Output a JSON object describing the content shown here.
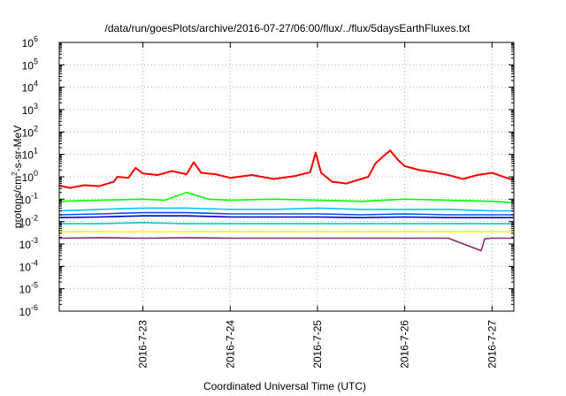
{
  "chart_data": {
    "type": "line",
    "title": "/data/run/goesPlots/archive/2016-07-27/06:00/flux/../flux/5daysEarthFluxes.txt",
    "xlabel": "Coordinated Universal Time (UTC)",
    "ylabel": {
      "prefix": "protons/cm",
      "sup": "2",
      "suffix": "-s-sr-MeV"
    },
    "y_scale": "log",
    "ylim_exponent": [
      -6,
      6
    ],
    "y_tick_exponents": [
      -6,
      -5,
      -4,
      -3,
      -2,
      -1,
      0,
      1,
      2,
      3,
      4,
      5,
      6
    ],
    "y_tick_base": "10",
    "xlim": [
      "2016-07-22 01:00",
      "2016-07-27 06:00"
    ],
    "x_ticks": [
      "2016-7-23",
      "2016-7-24",
      "2016-7-25",
      "2016-7-26",
      "2016-7-27"
    ],
    "grid": true,
    "legend": "none",
    "series": [
      {
        "color": "#ff0000",
        "points": [
          [
            "2016-07-22 01:00",
            0.4
          ],
          [
            "2016-07-22 04:00",
            0.32
          ],
          [
            "2016-07-22 08:00",
            0.42
          ],
          [
            "2016-07-22 12:00",
            0.38
          ],
          [
            "2016-07-22 16:00",
            0.6
          ],
          [
            "2016-07-22 20:00",
            0.9
          ],
          [
            "2016-07-23 00:00",
            1.4
          ],
          [
            "2016-07-22 17:00",
            1.0
          ],
          [
            "2016-07-22 22:00",
            2.5
          ],
          [
            "2016-07-23 04:00",
            1.2
          ],
          [
            "2016-07-23 08:00",
            1.8
          ],
          [
            "2016-07-23 12:00",
            1.3
          ],
          [
            "2016-07-23 14:00",
            4.5
          ],
          [
            "2016-07-23 16:00",
            1.5
          ],
          [
            "2016-07-23 20:00",
            1.3
          ],
          [
            "2016-07-24 00:00",
            0.9
          ],
          [
            "2016-07-24 06:00",
            1.2
          ],
          [
            "2016-07-24 12:00",
            0.8
          ],
          [
            "2016-07-24 18:00",
            1.1
          ],
          [
            "2016-07-24 22:00",
            1.6
          ],
          [
            "2016-07-24 23:30",
            12.0
          ],
          [
            "2016-07-25 01:00",
            1.5
          ],
          [
            "2016-07-25 04:00",
            0.6
          ],
          [
            "2016-07-25 08:00",
            0.5
          ],
          [
            "2016-07-25 12:00",
            0.8
          ],
          [
            "2016-07-25 14:00",
            1.0
          ],
          [
            "2016-07-25 16:00",
            4.0
          ],
          [
            "2016-07-25 18:00",
            8.0
          ],
          [
            "2016-07-25 20:00",
            15.0
          ],
          [
            "2016-07-25 22:00",
            6.0
          ],
          [
            "2016-07-26 00:00",
            3.0
          ],
          [
            "2016-07-26 04:00",
            2.0
          ],
          [
            "2016-07-26 08:00",
            1.6
          ],
          [
            "2016-07-26 12:00",
            1.2
          ],
          [
            "2016-07-26 16:00",
            0.8
          ],
          [
            "2016-07-26 20:00",
            1.2
          ],
          [
            "2016-07-27 00:00",
            1.5
          ],
          [
            "2016-07-27 04:00",
            0.9
          ],
          [
            "2016-07-27 06:00",
            0.7
          ]
        ]
      },
      {
        "color": "#00ff00",
        "points": [
          [
            "2016-07-22 01:00",
            0.08
          ],
          [
            "2016-07-22 12:00",
            0.09
          ],
          [
            "2016-07-23 00:00",
            0.1
          ],
          [
            "2016-07-23 06:00",
            0.09
          ],
          [
            "2016-07-23 12:00",
            0.2
          ],
          [
            "2016-07-23 18:00",
            0.1
          ],
          [
            "2016-07-24 00:00",
            0.09
          ],
          [
            "2016-07-24 12:00",
            0.1
          ],
          [
            "2016-07-25 00:00",
            0.09
          ],
          [
            "2016-07-25 12:00",
            0.08
          ],
          [
            "2016-07-26 00:00",
            0.1
          ],
          [
            "2016-07-26 12:00",
            0.09
          ],
          [
            "2016-07-27 00:00",
            0.08
          ],
          [
            "2016-07-27 06:00",
            0.07
          ]
        ]
      },
      {
        "color": "#00c8ff",
        "points": [
          [
            "2016-07-22 01:00",
            0.03
          ],
          [
            "2016-07-22 12:00",
            0.035
          ],
          [
            "2016-07-23 00:00",
            0.04
          ],
          [
            "2016-07-23 12:00",
            0.04
          ],
          [
            "2016-07-24 00:00",
            0.035
          ],
          [
            "2016-07-24 12:00",
            0.035
          ],
          [
            "2016-07-25 00:00",
            0.04
          ],
          [
            "2016-07-25 12:00",
            0.035
          ],
          [
            "2016-07-26 00:00",
            0.035
          ],
          [
            "2016-07-26 12:00",
            0.035
          ],
          [
            "2016-07-27 00:00",
            0.03
          ],
          [
            "2016-07-27 06:00",
            0.03
          ]
        ]
      },
      {
        "color": "#0050ff",
        "points": [
          [
            "2016-07-22 01:00",
            0.02
          ],
          [
            "2016-07-22 12:00",
            0.022
          ],
          [
            "2016-07-23 00:00",
            0.025
          ],
          [
            "2016-07-23 12:00",
            0.025
          ],
          [
            "2016-07-24 00:00",
            0.022
          ],
          [
            "2016-07-24 12:00",
            0.022
          ],
          [
            "2016-07-25 00:00",
            0.022
          ],
          [
            "2016-07-25 12:00",
            0.02
          ],
          [
            "2016-07-26 00:00",
            0.022
          ],
          [
            "2016-07-26 12:00",
            0.02
          ],
          [
            "2016-07-27 00:00",
            0.02
          ],
          [
            "2016-07-27 06:00",
            0.02
          ]
        ]
      },
      {
        "color": "#0000c8",
        "points": [
          [
            "2016-07-22 01:00",
            0.015
          ],
          [
            "2016-07-22 12:00",
            0.016
          ],
          [
            "2016-07-23 00:00",
            0.018
          ],
          [
            "2016-07-23 12:00",
            0.018
          ],
          [
            "2016-07-24 00:00",
            0.016
          ],
          [
            "2016-07-24 12:00",
            0.016
          ],
          [
            "2016-07-25 00:00",
            0.016
          ],
          [
            "2016-07-25 12:00",
            0.015
          ],
          [
            "2016-07-26 00:00",
            0.016
          ],
          [
            "2016-07-26 12:00",
            0.015
          ],
          [
            "2016-07-27 00:00",
            0.015
          ],
          [
            "2016-07-27 06:00",
            0.015
          ]
        ]
      },
      {
        "color": "#00d2b4",
        "points": [
          [
            "2016-07-22 01:00",
            0.008
          ],
          [
            "2016-07-22 12:00",
            0.008
          ],
          [
            "2016-07-23 00:00",
            0.009
          ],
          [
            "2016-07-23 12:00",
            0.008
          ],
          [
            "2016-07-24 00:00",
            0.008
          ],
          [
            "2016-07-24 12:00",
            0.008
          ],
          [
            "2016-07-25 00:00",
            0.008
          ],
          [
            "2016-07-25 12:00",
            0.008
          ],
          [
            "2016-07-26 00:00",
            0.008
          ],
          [
            "2016-07-26 12:00",
            0.008
          ],
          [
            "2016-07-27 00:00",
            0.008
          ],
          [
            "2016-07-27 06:00",
            0.008
          ]
        ]
      },
      {
        "color": "#ffff00",
        "points": [
          [
            "2016-07-22 01:00",
            0.0035
          ],
          [
            "2016-07-23 00:00",
            0.0035
          ],
          [
            "2016-07-24 00:00",
            0.0035
          ],
          [
            "2016-07-25 00:00",
            0.0035
          ],
          [
            "2016-07-26 00:00",
            0.0035
          ],
          [
            "2016-07-27 00:00",
            0.0035
          ],
          [
            "2016-07-27 06:00",
            0.0035
          ]
        ]
      },
      {
        "color": "#8c2d6e",
        "points": [
          [
            "2016-07-22 01:00",
            0.0018
          ],
          [
            "2016-07-22 12:00",
            0.0019
          ],
          [
            "2016-07-23 00:00",
            0.0018
          ],
          [
            "2016-07-23 12:00",
            0.0019
          ],
          [
            "2016-07-24 00:00",
            0.0018
          ],
          [
            "2016-07-24 12:00",
            0.0018
          ],
          [
            "2016-07-25 00:00",
            0.0018
          ],
          [
            "2016-07-25 12:00",
            0.0018
          ],
          [
            "2016-07-26 00:00",
            0.0018
          ],
          [
            "2016-07-26 12:00",
            0.0018
          ],
          [
            "2016-07-26 21:00",
            0.0005
          ],
          [
            "2016-07-26 22:00",
            0.0017
          ],
          [
            "2016-07-27 00:00",
            0.0018
          ],
          [
            "2016-07-27 06:00",
            0.0018
          ]
        ]
      }
    ]
  }
}
